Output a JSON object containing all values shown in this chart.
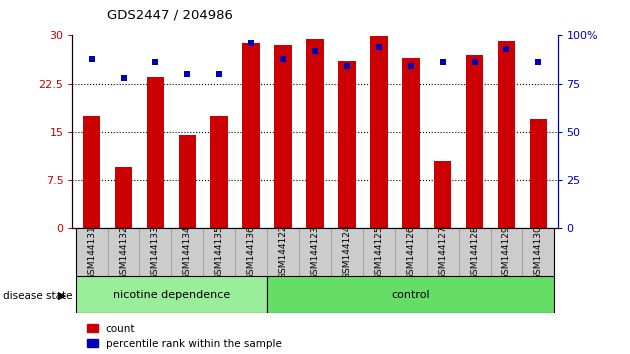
{
  "title": "GDS2447 / 204986",
  "samples": [
    "GSM144131",
    "GSM144132",
    "GSM144133",
    "GSM144134",
    "GSM144135",
    "GSM144136",
    "GSM144122",
    "GSM144123",
    "GSM144124",
    "GSM144125",
    "GSM144126",
    "GSM144127",
    "GSM144128",
    "GSM144129",
    "GSM144130"
  ],
  "count_values": [
    17.5,
    9.5,
    23.5,
    14.5,
    17.5,
    28.8,
    28.5,
    29.5,
    26.0,
    29.9,
    26.5,
    10.5,
    27.0,
    29.2,
    17.0
  ],
  "percentile_values": [
    88,
    78,
    86,
    80,
    80,
    96,
    88,
    92,
    84,
    94,
    84,
    86,
    86,
    93,
    86
  ],
  "group1_label": "nicotine dependence",
  "group1_count": 6,
  "group2_label": "control",
  "group2_count": 9,
  "disease_state_label": "disease state",
  "ylim_left": [
    0,
    30
  ],
  "ylim_right": [
    0,
    100
  ],
  "yticks_left": [
    0,
    7.5,
    15,
    22.5,
    30
  ],
  "yticks_right": [
    0,
    25,
    50,
    75,
    100
  ],
  "bar_color": "#cc0000",
  "dot_color": "#0000bb",
  "bar_width": 0.55,
  "bg_color": "#ffffff",
  "axis_color_left": "#cc0000",
  "axis_color_right": "#0000bb",
  "legend_count_label": "count",
  "legend_percentile_label": "percentile rank within the sample",
  "group_color_1": "#99ee99",
  "group_color_2": "#66dd66",
  "tick_bg_color": "#cccccc",
  "hgrid_yticks": [
    7.5,
    15,
    22.5
  ]
}
